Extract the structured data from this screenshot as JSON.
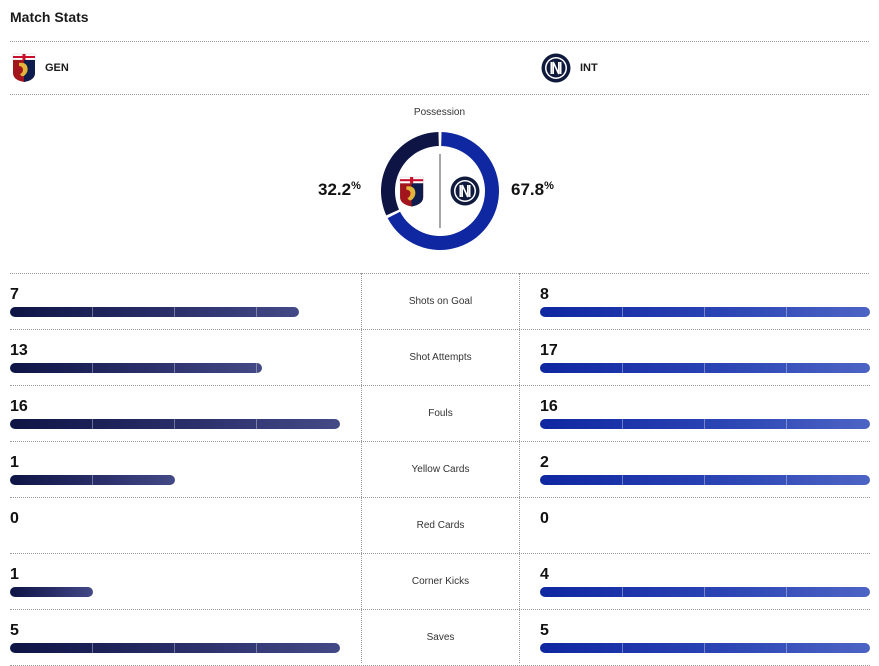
{
  "header": {
    "title": "Match Stats"
  },
  "teams": {
    "home": {
      "abbr": "GEN",
      "color": "#0e1545"
    },
    "away": {
      "abbr": "INT",
      "color": "#0f27a0"
    }
  },
  "possession": {
    "label": "Possession",
    "home_value": 32.2,
    "away_value": 67.8,
    "home_text": "32.2",
    "away_text": "67.8",
    "unit": "%"
  },
  "stats": [
    {
      "label": "Shots on Goal",
      "home": "7",
      "away": "8",
      "home_fill": 0.875,
      "away_fill": 1.0
    },
    {
      "label": "Shot Attempts",
      "home": "13",
      "away": "17",
      "home_fill": 0.765,
      "away_fill": 1.0
    },
    {
      "label": "Fouls",
      "home": "16",
      "away": "16",
      "home_fill": 1.0,
      "away_fill": 1.0
    },
    {
      "label": "Yellow Cards",
      "home": "1",
      "away": "2",
      "home_fill": 0.5,
      "away_fill": 1.0
    },
    {
      "label": "Red Cards",
      "home": "0",
      "away": "0",
      "home_fill": 0,
      "away_fill": 0
    },
    {
      "label": "Corner Kicks",
      "home": "1",
      "away": "4",
      "home_fill": 0.25,
      "away_fill": 1.0
    },
    {
      "label": "Saves",
      "home": "5",
      "away": "5",
      "home_fill": 1.0,
      "away_fill": 1.0
    }
  ]
}
